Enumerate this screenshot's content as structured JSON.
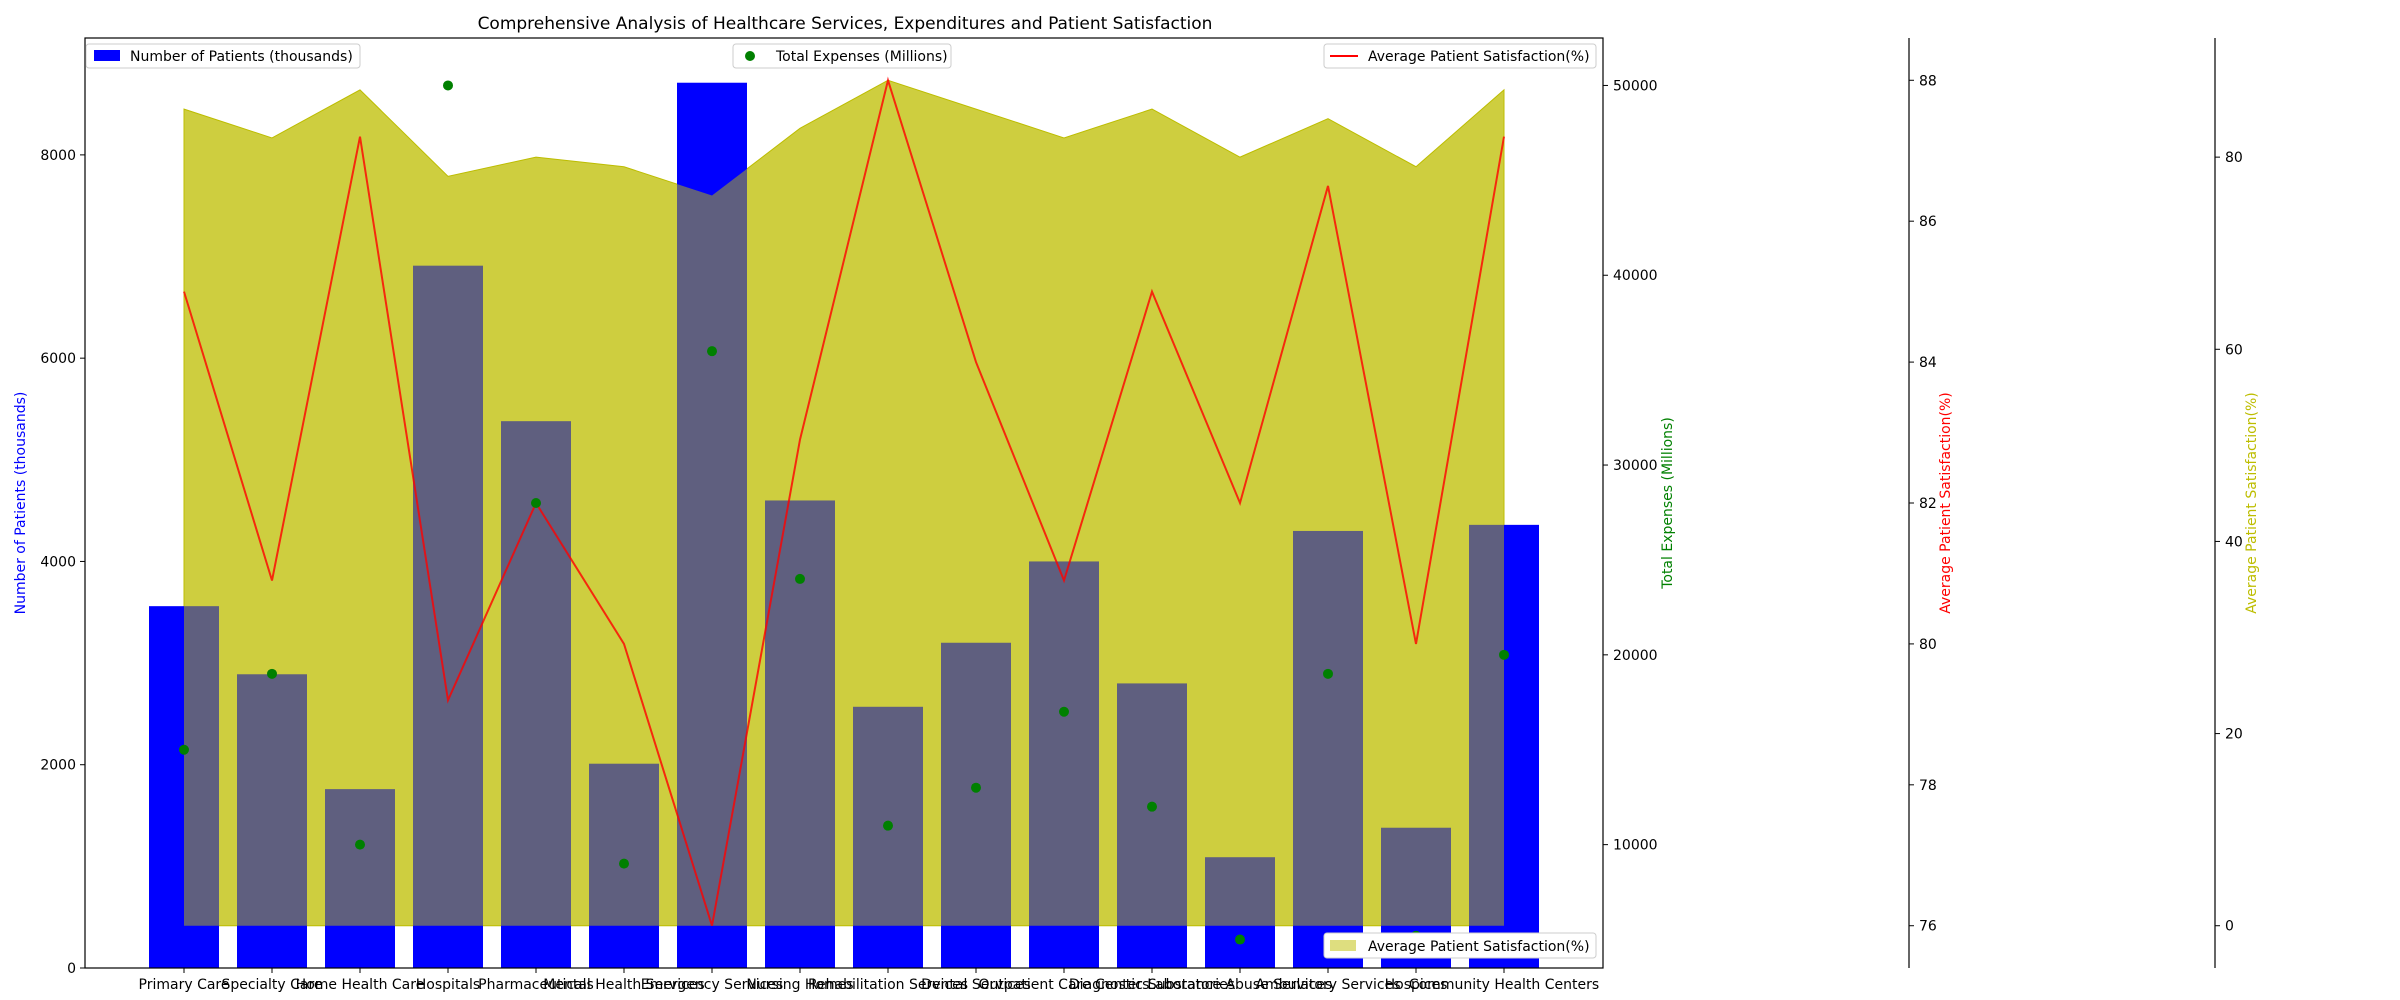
{
  "chart_data": {
    "type": "bar",
    "title": "Comprehensive Analysis of Healthcare Services, Expenditures and Patient Satisfaction",
    "categories": [
      "Primary Care",
      "Specialty Care",
      "Home Health Care",
      "Hospitals",
      "Pharmaceuticals",
      "Mental Health Services",
      "Emergency Services",
      "Nursing Homes",
      "Rehabilitation Services",
      "Dental Services",
      "Outpatient Care Centers",
      "Diagnostic Laboratories",
      "Substance Abuse Services",
      "Ambulatory Services",
      "Hospices",
      "Community Health Centers"
    ],
    "series": [
      {
        "name": "Number of Patients (thousands)",
        "type": "bar",
        "color": "#0000ff",
        "axis": "left",
        "values": [
          3560,
          2890,
          1760,
          6910,
          5380,
          2010,
          8710,
          4600,
          2570,
          3200,
          4000,
          2800,
          1090,
          4300,
          1380,
          4360
        ]
      },
      {
        "name": "Total Expenses (Millions)",
        "type": "scatter",
        "color": "#008000",
        "axis": "right1",
        "values": [
          15000,
          19000,
          10000,
          50000,
          28000,
          9000,
          36000,
          24000,
          11000,
          13000,
          17000,
          12000,
          5000,
          19000,
          5200,
          20000
        ]
      },
      {
        "name": "Average Patient Satisfaction(%)",
        "type": "line",
        "color": "#ff0000",
        "axis": "right2",
        "values": [
          85.0,
          80.9,
          87.2,
          79.2,
          82.0,
          80.0,
          76.0,
          82.9,
          88.0,
          84.0,
          80.9,
          85.0,
          82.0,
          86.5,
          80.0,
          87.2
        ]
      },
      {
        "name": "Average Patient Satisfaction(%)",
        "type": "area",
        "color": "#bdbd00",
        "axis": "right3",
        "values": [
          85,
          82,
          87,
          78,
          80,
          79,
          76,
          83,
          88,
          85,
          82,
          85,
          80,
          84,
          79,
          87
        ]
      }
    ],
    "axes": {
      "left": {
        "label": "Number of Patients (thousands)",
        "color": "#0000ff",
        "ylim": [
          0,
          9150
        ],
        "ticks": [
          "0",
          "2000",
          "4000",
          "6000",
          "8000"
        ]
      },
      "right1": {
        "label": "Total Expenses (Millions)",
        "color": "#008000",
        "ylim": [
          3500,
          52500
        ],
        "ticks": [
          "10000",
          "20000",
          "30000",
          "40000",
          "50000"
        ]
      },
      "right2": {
        "label": "Average Patient Satisfaction(%)",
        "color": "#ff0000",
        "ylim": [
          75.4,
          88.6
        ],
        "ticks": [
          "76",
          "78",
          "80",
          "82",
          "84",
          "86",
          "88"
        ]
      },
      "right3": {
        "label": "Average Patient Satisfaction(%)",
        "color": "#bdbd00",
        "ylim": [
          -4.4,
          92.4
        ],
        "ticks": [
          "0",
          "20",
          "40",
          "60",
          "80"
        ]
      }
    },
    "legends": {
      "top_left": "Number of Patients (thousands)",
      "top_center": "Total Expenses (Millions)",
      "top_right": "Average Patient Satisfaction(%)",
      "bottom_right": "Average Patient Satisfaction(%)"
    },
    "grid": false
  }
}
